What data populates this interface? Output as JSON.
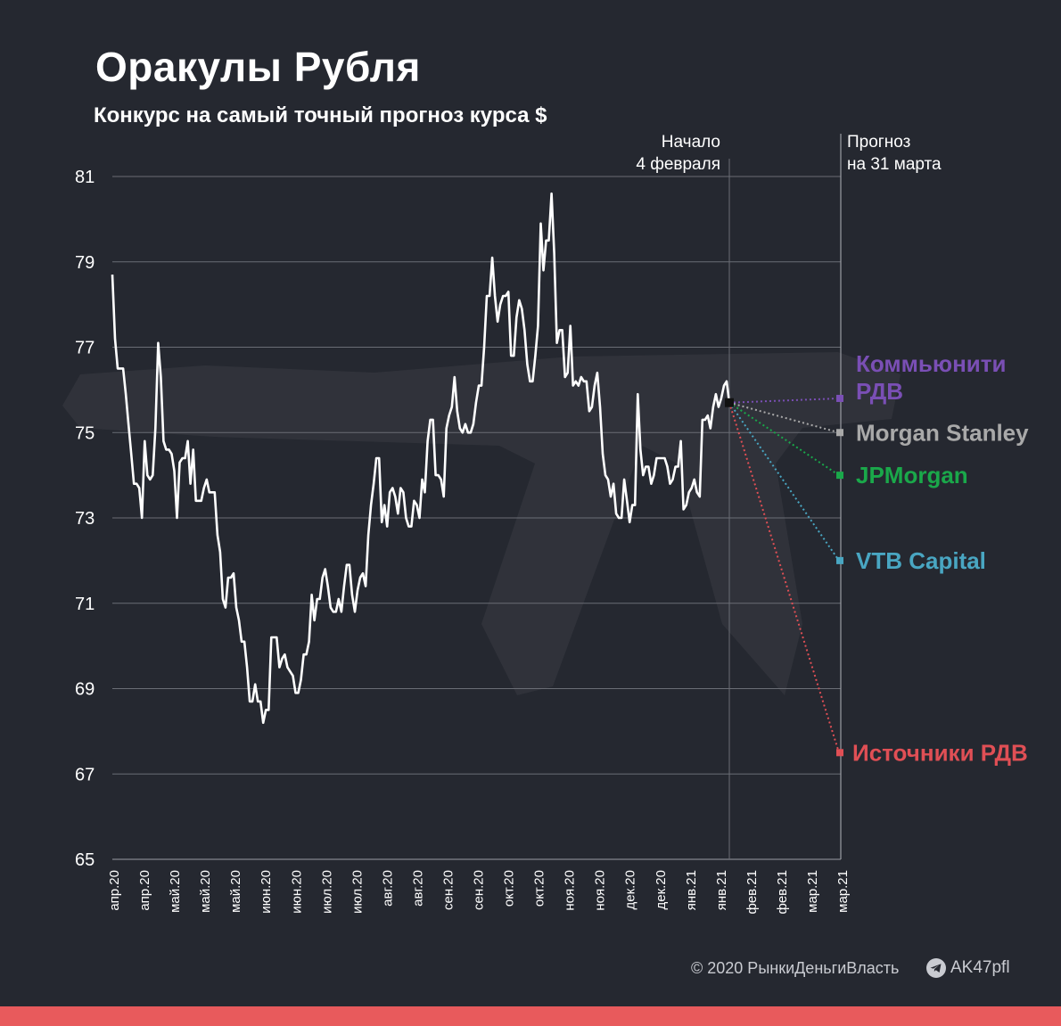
{
  "header": {
    "title": "Оракулы Рубля",
    "subtitle": "Конкурс на самый точный прогноз курса $"
  },
  "footer": {
    "credit": "© 2020  РынкиДеньгиВласть",
    "handle": "AK47pfl",
    "telegram_icon": "telegram-icon"
  },
  "colors": {
    "background": "#252830",
    "line": "#ffffff",
    "grid": "#6a6d75",
    "bottom_bar": "#e85a5c"
  },
  "chart_data": {
    "type": "line",
    "ylim": [
      65,
      81
    ],
    "y_ticks": [
      81,
      79,
      77,
      75,
      73,
      71,
      69,
      67,
      65
    ],
    "x_tick_labels": [
      "апр.20",
      "апр.20",
      "май.20",
      "май.20",
      "май.20",
      "июн.20",
      "июн.20",
      "июл.20",
      "июл.20",
      "авг.20",
      "авг.20",
      "сен.20",
      "сен.20",
      "окт.20",
      "окт.20",
      "ноя.20",
      "ноя.20",
      "дек.20",
      "дек.20",
      "янв.21",
      "янв.21",
      "фев.21",
      "фев.21",
      "мар.21",
      "мар.21"
    ],
    "grid": true,
    "annotations": {
      "start_label": [
        "Начало",
        "4 февраля"
      ],
      "forecast_label": [
        "Прогноз",
        "на 31 марта"
      ]
    },
    "series": [
      {
        "values": [
          78.7,
          77.2,
          76.5,
          76.5,
          76.5,
          75.9,
          75.2,
          74.5,
          73.8,
          73.8,
          73.7,
          73.0,
          74.8,
          74.0,
          73.9,
          74.0,
          75.1,
          77.1,
          76.3,
          74.8,
          74.6,
          74.6,
          74.5,
          74.1,
          73.0,
          74.3,
          74.4,
          74.4,
          74.8,
          73.8,
          74.6,
          73.4,
          73.4,
          73.4,
          73.7,
          73.9,
          73.6,
          73.6,
          73.6,
          72.6,
          72.2,
          71.1,
          70.9,
          71.6,
          71.6,
          71.7,
          70.9,
          70.6,
          70.1,
          70.1,
          69.5,
          68.7,
          68.7,
          69.1,
          68.7,
          68.7,
          68.2,
          68.5,
          68.5,
          70.2,
          70.2,
          70.2,
          69.5,
          69.7,
          69.8,
          69.5,
          69.4,
          69.3,
          68.9,
          68.9,
          69.2,
          69.8,
          69.8,
          70.1,
          71.2,
          70.6,
          71.1,
          71.1,
          71.6,
          71.8,
          71.4,
          70.9,
          70.8,
          70.8,
          71.1,
          70.8,
          71.4,
          71.9,
          71.9,
          71.2,
          70.8,
          71.3,
          71.6,
          71.7,
          71.4,
          72.6,
          73.3,
          73.8,
          74.4,
          74.4,
          72.9,
          73.3,
          72.8,
          73.6,
          73.7,
          73.5,
          73.1,
          73.7,
          73.6,
          73.0,
          72.8,
          72.8,
          73.4,
          73.3,
          73.0,
          73.9,
          73.6,
          74.8,
          75.3,
          75.3,
          74.0,
          74.0,
          73.9,
          73.5,
          75.1,
          75.4,
          75.6,
          76.3,
          75.5,
          75.1,
          75.0,
          75.2,
          75.0,
          75.0,
          75.2,
          75.7,
          76.1,
          76.1,
          77.0,
          78.2,
          78.2,
          79.1,
          78.2,
          77.6,
          78.0,
          78.2,
          78.2,
          78.3,
          76.8,
          76.8,
          77.7,
          78.1,
          77.9,
          77.4,
          76.6,
          76.2,
          76.2,
          76.8,
          77.5,
          79.9,
          78.8,
          79.5,
          79.5,
          80.6,
          79.2,
          77.1,
          77.4,
          77.4,
          76.3,
          76.4,
          77.5,
          76.1,
          76.2,
          76.1,
          76.3,
          76.2,
          76.2,
          75.5,
          75.6,
          76.1,
          76.4,
          75.6,
          74.5,
          74.0,
          73.9,
          73.5,
          73.8,
          73.1,
          73.0,
          73.0,
          73.9,
          73.4,
          72.9,
          73.3,
          73.3,
          75.9,
          74.6,
          74.0,
          74.2,
          74.2,
          73.8,
          74.0,
          74.4,
          74.4,
          74.4,
          74.4,
          74.2,
          73.8,
          73.9,
          74.2,
          74.2,
          74.8,
          73.2,
          73.3,
          73.6,
          73.7,
          73.9,
          73.6,
          73.5,
          75.3,
          75.3,
          75.4,
          75.1,
          75.6,
          75.9,
          75.6,
          75.8,
          76.1,
          76.2,
          75.7
        ],
        "color": "#ffffff"
      }
    ],
    "start_value": 75.7,
    "forecasts": [
      {
        "name": "Коммьюнити РДВ",
        "label_lines": [
          "Коммьюнити",
          "РДВ"
        ],
        "value": 75.8,
        "color": "#7a4fb5"
      },
      {
        "name": "Morgan Stanley",
        "label_lines": [
          "Morgan Stanley"
        ],
        "value": 75.0,
        "color": "#a9a9a9"
      },
      {
        "name": "JPMorgan",
        "label_lines": [
          "JPMorgan"
        ],
        "value": 74.0,
        "color": "#1aa84a"
      },
      {
        "name": "VTB Capital",
        "label_lines": [
          "VTB Capital"
        ],
        "value": 72.0,
        "color": "#49a6c2"
      },
      {
        "name": "Источники РДВ",
        "label_lines": [
          "Источники РДВ"
        ],
        "value": 67.5,
        "color": "#e04f55"
      }
    ]
  }
}
